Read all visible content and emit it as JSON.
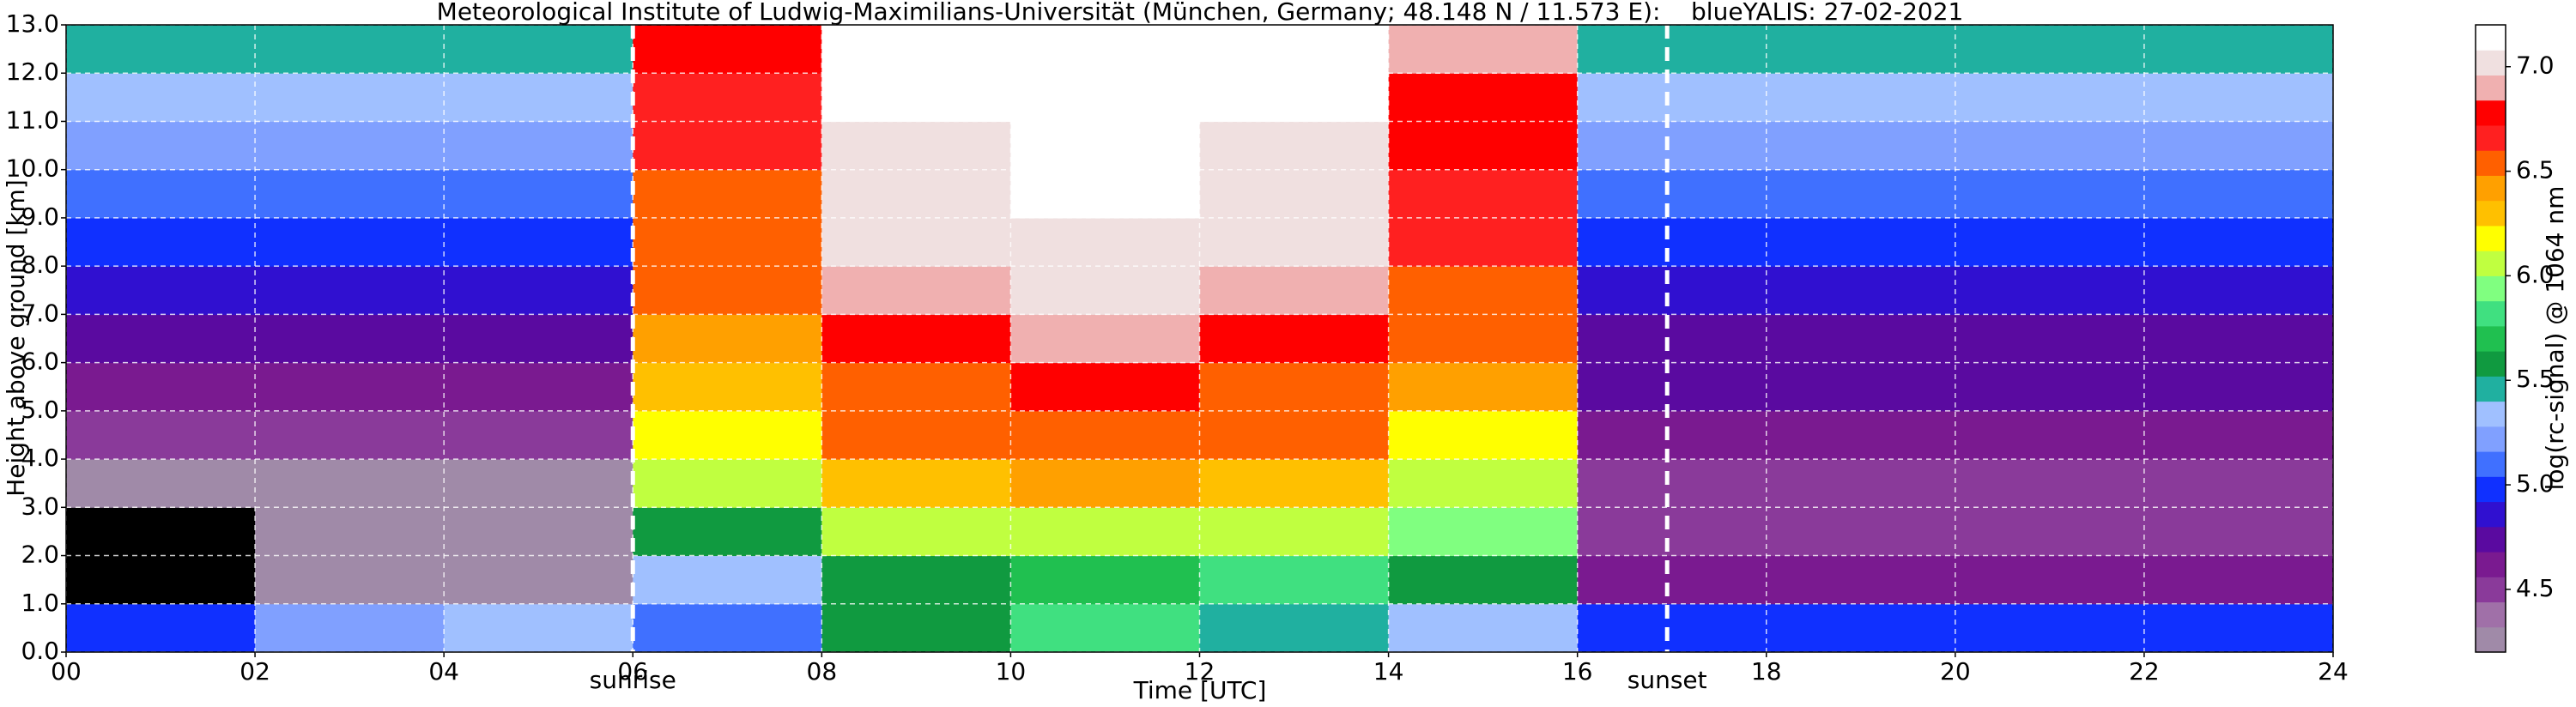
{
  "chart_data": {
    "type": "heatmap",
    "title": "Meteorological Institute of Ludwig-Maximilians-Universität (München, Germany; 48.148 N / 11.573 E):    blueYALIS: 27-02-2021",
    "x_label": "Time [UTC]",
    "y_label": "Height above ground [km]",
    "colorbar_label": "log(rc-signal) @ 1064 nm",
    "x_edges": [
      0,
      2,
      4,
      6,
      8,
      10,
      12,
      14,
      16,
      18,
      20,
      22,
      24
    ],
    "y_edges": [
      0,
      1,
      2,
      3,
      4,
      5,
      6,
      7,
      8,
      9,
      10,
      11,
      12,
      13
    ],
    "z": [
      [
        5.0,
        5.2,
        5.3,
        5.1,
        5.6,
        5.8,
        5.5,
        5.3,
        5.0,
        5.0,
        5.0,
        5.0
      ],
      [
        4.0,
        4.2,
        4.3,
        5.3,
        5.6,
        5.7,
        5.8,
        5.6,
        4.6,
        4.6,
        4.6,
        4.6
      ],
      [
        4.0,
        4.2,
        4.2,
        5.6,
        6.0,
        6.0,
        6.0,
        5.9,
        4.5,
        4.5,
        4.5,
        4.5
      ],
      [
        4.2,
        4.3,
        4.3,
        6.0,
        6.3,
        6.4,
        6.3,
        6.1,
        4.5,
        4.5,
        4.5,
        4.5
      ],
      [
        4.5,
        4.5,
        4.5,
        6.2,
        6.5,
        6.6,
        6.5,
        6.2,
        4.6,
        4.6,
        4.6,
        4.6
      ],
      [
        4.6,
        4.6,
        4.6,
        6.3,
        6.6,
        6.8,
        6.6,
        6.4,
        4.7,
        4.7,
        4.7,
        4.7
      ],
      [
        4.8,
        4.8,
        4.8,
        6.4,
        6.8,
        6.9,
        6.8,
        6.5,
        4.8,
        4.8,
        4.8,
        4.8
      ],
      [
        4.9,
        4.9,
        4.9,
        6.5,
        6.9,
        7.0,
        6.9,
        6.6,
        4.9,
        4.9,
        4.9,
        4.9
      ],
      [
        5.0,
        5.0,
        5.0,
        6.6,
        7.0,
        7.0,
        7.0,
        6.7,
        5.0,
        5.0,
        5.0,
        5.0
      ],
      [
        5.1,
        5.1,
        5.1,
        6.6,
        7.0,
        7.1,
        7.0,
        6.7,
        5.1,
        5.1,
        5.1,
        5.1
      ],
      [
        5.2,
        5.2,
        5.2,
        6.7,
        7.0,
        7.1,
        7.0,
        6.8,
        5.2,
        5.2,
        5.2,
        5.2
      ],
      [
        5.3,
        5.3,
        5.3,
        6.7,
        7.1,
        7.1,
        7.1,
        6.8,
        5.3,
        5.3,
        5.3,
        5.3
      ],
      [
        5.4,
        5.4,
        5.4,
        6.8,
        7.1,
        7.2,
        7.1,
        6.9,
        5.4,
        5.4,
        5.4,
        5.4
      ]
    ],
    "xlim": [
      0,
      24
    ],
    "ylim": [
      0,
      13
    ],
    "zlim": [
      4.2,
      7.2
    ],
    "xticks": [
      {
        "value": 0,
        "label": "00"
      },
      {
        "value": 2,
        "label": "02"
      },
      {
        "value": 4,
        "label": "04"
      },
      {
        "value": 6,
        "label": "06"
      },
      {
        "value": 8,
        "label": "08"
      },
      10,
      12,
      14,
      16,
      18,
      20,
      22,
      24
    ],
    "yticks": [
      {
        "value": 0,
        "label": "0.0"
      },
      {
        "value": 1,
        "label": "1.0"
      },
      {
        "value": 2,
        "label": "2.0"
      },
      {
        "value": 3,
        "label": "3.0"
      },
      {
        "value": 4,
        "label": "4.0"
      },
      {
        "value": 5,
        "label": "5.0"
      },
      {
        "value": 6,
        "label": "6.0"
      },
      {
        "value": 7,
        "label": "7.0"
      },
      {
        "value": 8,
        "label": "8.0"
      },
      {
        "value": 9,
        "label": "9.0"
      },
      {
        "value": 10,
        "label": "10.0"
      },
      {
        "value": 11,
        "label": "11.0"
      },
      {
        "value": 12,
        "label": "12.0"
      },
      {
        "value": 13,
        "label": "13.0"
      }
    ],
    "zticks": [
      4.5,
      {
        "value": 5,
        "label": "5.0"
      },
      5.5,
      {
        "value": 6,
        "label": "6.0"
      },
      6.5,
      {
        "value": 7,
        "label": "7.0"
      }
    ],
    "colormap": [
      "#a08aa8",
      "#a070a8",
      "#8a3a9a",
      "#7a1a90",
      "#5a0aa0",
      "#3010d0",
      "#1030ff",
      "#4070ff",
      "#80a0ff",
      "#a0c0ff",
      "#20b0a0",
      "#109a40",
      "#20c050",
      "#40e080",
      "#80ff80",
      "#c0ff40",
      "#ffff00",
      "#ffc000",
      "#ffa000",
      "#ff6000",
      "#ff2020",
      "#ff0000",
      "#f0b0b0",
      "#f0e0e0",
      "#ffffff"
    ],
    "under_color": "#000000",
    "grid": true,
    "annotations": [
      {
        "x": 6.0,
        "text": "sunrise"
      },
      {
        "x": 16.95,
        "text": "sunset"
      }
    ]
  }
}
